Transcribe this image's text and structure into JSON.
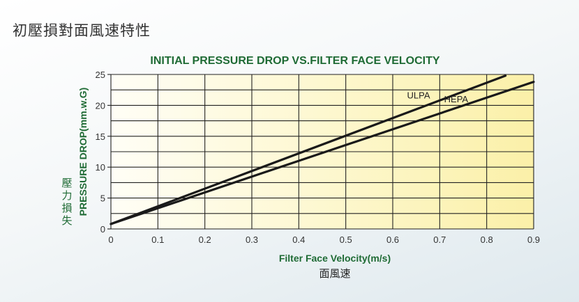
{
  "page": {
    "title": "初壓損對面風速特性"
  },
  "chart_data": {
    "type": "line",
    "title": "INITIAL PRESSURE DROP VS.FILTER FACE VELOCITY",
    "xlabel": "Filter Face Velocity(m/s)",
    "xlabel_sub": "面風速",
    "ylabel": "PRESSURE DROP(mm.w.G)",
    "ylabel_sub": "壓力損失",
    "xlim": [
      0,
      0.9
    ],
    "ylim": [
      0,
      25
    ],
    "x_ticks": [
      "0",
      "0.1",
      "0.2",
      "0.3",
      "0.4",
      "0.5",
      "0.6",
      "0.7",
      "0.8",
      "0.9"
    ],
    "y_ticks": [
      "0",
      "5",
      "10",
      "15",
      "20",
      "25"
    ],
    "grid": true,
    "series": [
      {
        "name": "ULPA",
        "x": [
          0,
          0.84
        ],
        "y": [
          0.8,
          24.8
        ],
        "color": "#1a1a1a"
      },
      {
        "name": "HEPA",
        "x": [
          0,
          0.9
        ],
        "y": [
          0.8,
          23.8
        ],
        "color": "#1a1a1a"
      }
    ],
    "colors": {
      "title": "#1f6b35",
      "plot_bg_left": "#fffef4",
      "plot_bg_right": "#fbf0a8",
      "grid": "#222222"
    }
  }
}
